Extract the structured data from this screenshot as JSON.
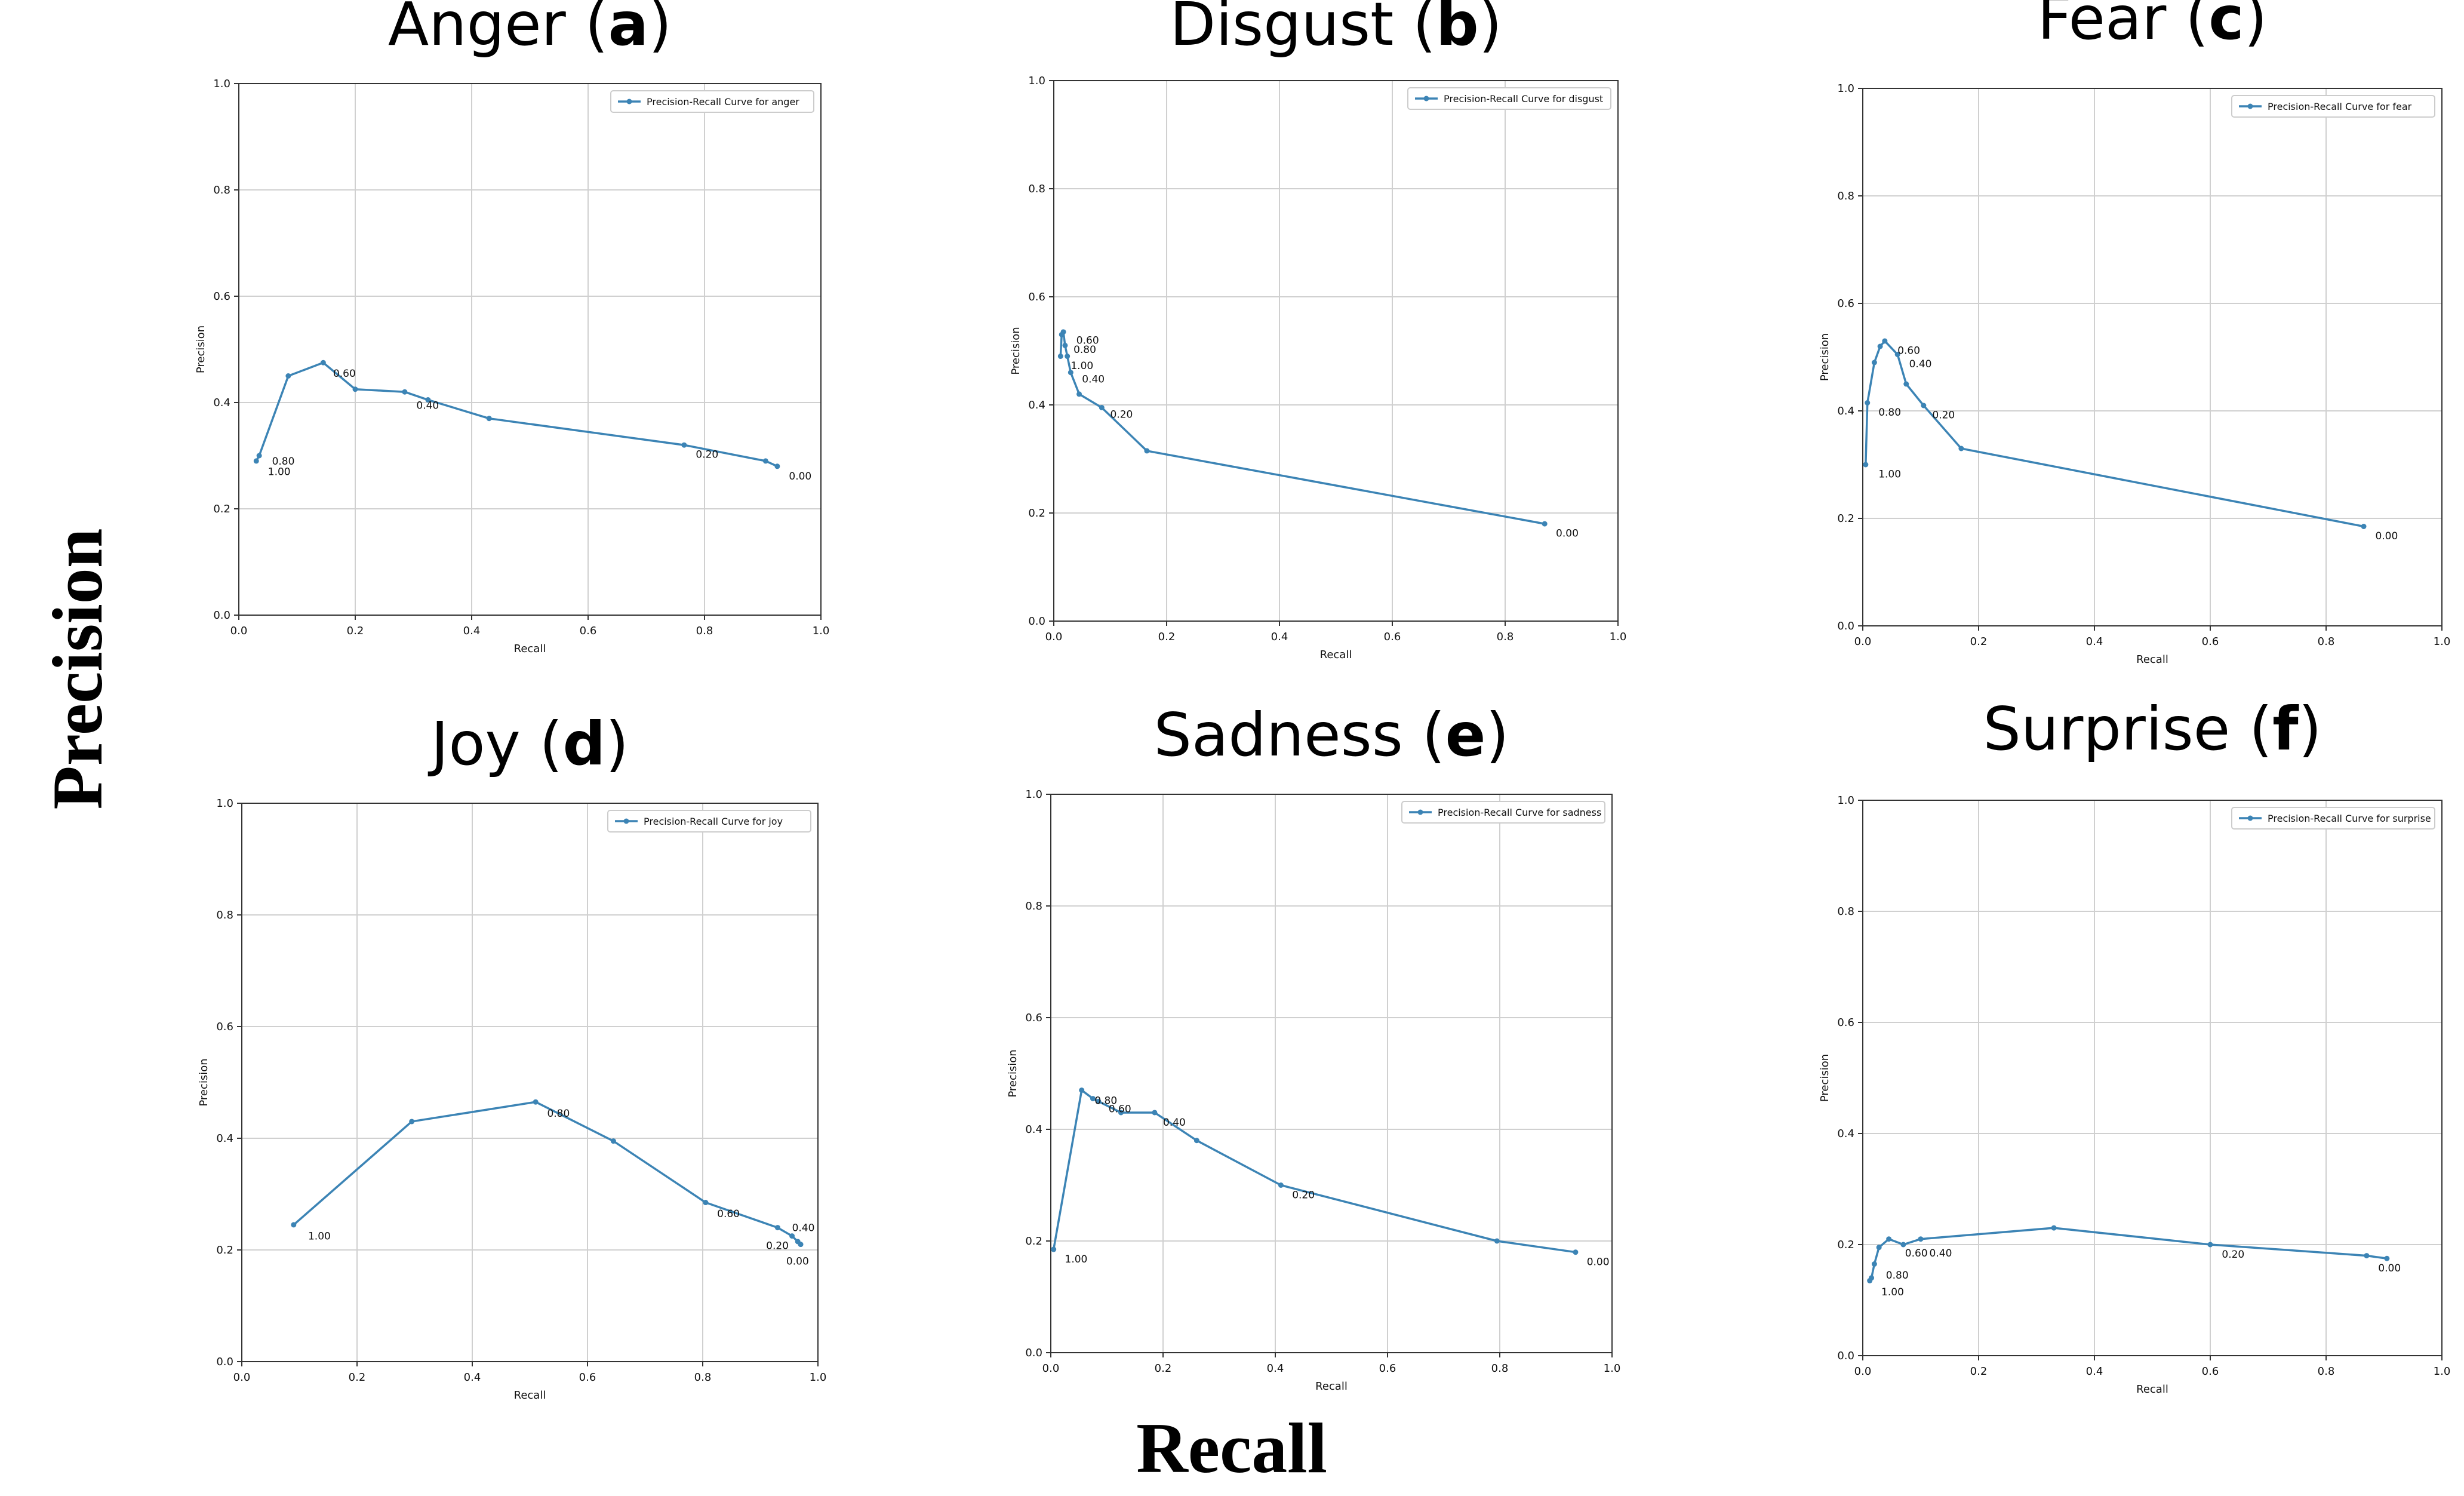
{
  "figure": {
    "ylabel": "Precision",
    "xlabel": "Recall"
  },
  "colors": {
    "series": "#3c84b5",
    "grid": "#d0d0d0",
    "axis": "#333333",
    "text": "#111111"
  },
  "chart_data": [
    {
      "type": "line",
      "title_name": "Anger",
      "title_letter": "a",
      "xlabel": "Recall",
      "ylabel": "Precision",
      "xlim": [
        0,
        1
      ],
      "ylim": [
        0,
        1
      ],
      "xticks": [
        "0.0",
        "0.2",
        "0.4",
        "0.6",
        "0.8",
        "1.0"
      ],
      "yticks": [
        "0.0",
        "0.2",
        "0.4",
        "0.6",
        "0.8",
        "1.0"
      ],
      "grid": true,
      "legend": "Precision-Recall Curve for anger",
      "legend_position": "top-right",
      "series": [
        {
          "name": "Precision-Recall Curve for anger",
          "x": [
            0.03,
            0.035,
            0.085,
            0.145,
            0.2,
            0.285,
            0.325,
            0.43,
            0.765,
            0.905,
            0.925
          ],
          "y": [
            0.29,
            0.3,
            0.45,
            0.475,
            0.425,
            0.42,
            0.405,
            0.37,
            0.32,
            0.29,
            0.28
          ]
        }
      ],
      "annotations": [
        {
          "text": "1.00",
          "x": 0.05,
          "y": 0.27
        },
        {
          "text": "0.80",
          "x": 0.057,
          "y": 0.29
        },
        {
          "text": "0.60",
          "x": 0.162,
          "y": 0.455
        },
        {
          "text": "0.40",
          "x": 0.305,
          "y": 0.395
        },
        {
          "text": "0.20",
          "x": 0.785,
          "y": 0.303
        },
        {
          "text": "0.00",
          "x": 0.945,
          "y": 0.262
        }
      ]
    },
    {
      "type": "line",
      "title_name": "Disgust",
      "title_letter": "b",
      "xlabel": "Recall",
      "ylabel": "Precision",
      "xlim": [
        0,
        1
      ],
      "ylim": [
        0,
        1
      ],
      "xticks": [
        "0.0",
        "0.2",
        "0.4",
        "0.6",
        "0.8",
        "1.0"
      ],
      "yticks": [
        "0.0",
        "0.2",
        "0.4",
        "0.6",
        "0.8",
        "1.0"
      ],
      "grid": true,
      "legend": "Precision-Recall Curve for disgust",
      "legend_position": "top-right",
      "series": [
        {
          "name": "Precision-Recall Curve for disgust",
          "x": [
            0.012,
            0.014,
            0.017,
            0.02,
            0.024,
            0.03,
            0.045,
            0.085,
            0.165,
            0.87
          ],
          "y": [
            0.49,
            0.53,
            0.535,
            0.51,
            0.49,
            0.46,
            0.42,
            0.395,
            0.315,
            0.18
          ]
        }
      ],
      "annotations": [
        {
          "text": "0.60",
          "x": 0.04,
          "y": 0.52
        },
        {
          "text": "0.80",
          "x": 0.035,
          "y": 0.503
        },
        {
          "text": "1.00",
          "x": 0.03,
          "y": 0.473
        },
        {
          "text": "0.40",
          "x": 0.05,
          "y": 0.448
        },
        {
          "text": "0.20",
          "x": 0.1,
          "y": 0.383
        },
        {
          "text": "0.00",
          "x": 0.89,
          "y": 0.163
        }
      ]
    },
    {
      "type": "line",
      "title_name": "Fear",
      "title_letter": "c",
      "xlabel": "Recall",
      "ylabel": "Precision",
      "xlim": [
        0,
        1
      ],
      "ylim": [
        0,
        1
      ],
      "xticks": [
        "0.0",
        "0.2",
        "0.4",
        "0.6",
        "0.8",
        "1.0"
      ],
      "yticks": [
        "0.0",
        "0.2",
        "0.4",
        "0.6",
        "0.8",
        "1.0"
      ],
      "grid": true,
      "legend": "Precision-Recall Curve for fear",
      "legend_position": "top-right",
      "series": [
        {
          "name": "Precision-Recall Curve for fear",
          "x": [
            0.005,
            0.008,
            0.02,
            0.03,
            0.038,
            0.06,
            0.075,
            0.105,
            0.17,
            0.865
          ],
          "y": [
            0.3,
            0.415,
            0.49,
            0.52,
            0.53,
            0.505,
            0.45,
            0.41,
            0.33,
            0.185
          ]
        }
      ],
      "annotations": [
        {
          "text": "1.00",
          "x": 0.027,
          "y": 0.283
        },
        {
          "text": "0.80",
          "x": 0.027,
          "y": 0.398
        },
        {
          "text": "0.60",
          "x": 0.06,
          "y": 0.513
        },
        {
          "text": "0.40",
          "x": 0.08,
          "y": 0.488
        },
        {
          "text": "0.20",
          "x": 0.12,
          "y": 0.393
        },
        {
          "text": "0.00",
          "x": 0.885,
          "y": 0.168
        }
      ]
    },
    {
      "type": "line",
      "title_name": "Joy",
      "title_letter": "d",
      "xlabel": "Recall",
      "ylabel": "Precision",
      "xlim": [
        0,
        1
      ],
      "ylim": [
        0,
        1
      ],
      "xticks": [
        "0.0",
        "0.2",
        "0.4",
        "0.6",
        "0.8",
        "1.0"
      ],
      "yticks": [
        "0.0",
        "0.2",
        "0.4",
        "0.6",
        "0.8",
        "1.0"
      ],
      "grid": true,
      "legend": "Precision-Recall Curve for joy",
      "legend_position": "top-right",
      "series": [
        {
          "name": "Precision-Recall Curve for joy",
          "x": [
            0.09,
            0.295,
            0.51,
            0.645,
            0.805,
            0.93,
            0.955,
            0.965,
            0.97
          ],
          "y": [
            0.245,
            0.43,
            0.465,
            0.395,
            0.285,
            0.24,
            0.225,
            0.215,
            0.21
          ]
        }
      ],
      "annotations": [
        {
          "text": "1.00",
          "x": 0.115,
          "y": 0.225
        },
        {
          "text": "0.80",
          "x": 0.53,
          "y": 0.445
        },
        {
          "text": "0.60",
          "x": 0.825,
          "y": 0.265
        },
        {
          "text": "0.40",
          "x": 0.955,
          "y": 0.24
        },
        {
          "text": "0.20",
          "x": 0.91,
          "y": 0.208
        },
        {
          "text": "0.00",
          "x": 0.945,
          "y": 0.18
        }
      ]
    },
    {
      "type": "line",
      "title_name": "Sadness",
      "title_letter": "e",
      "xlabel": "Recall",
      "ylabel": "Precision",
      "xlim": [
        0,
        1
      ],
      "ylim": [
        0,
        1
      ],
      "xticks": [
        "0.0",
        "0.2",
        "0.4",
        "0.6",
        "0.8",
        "1.0"
      ],
      "yticks": [
        "0.0",
        "0.2",
        "0.4",
        "0.6",
        "0.8",
        "1.0"
      ],
      "grid": true,
      "legend": "Precision-Recall Curve for sadness",
      "legend_position": "top-right",
      "series": [
        {
          "name": "Precision-Recall Curve for sadness",
          "x": [
            0.005,
            0.055,
            0.075,
            0.085,
            0.125,
            0.185,
            0.26,
            0.41,
            0.795,
            0.935
          ],
          "y": [
            0.185,
            0.47,
            0.455,
            0.45,
            0.43,
            0.43,
            0.38,
            0.3,
            0.2,
            0.18
          ]
        }
      ],
      "annotations": [
        {
          "text": "1.00",
          "x": 0.025,
          "y": 0.168
        },
        {
          "text": "0.80",
          "x": 0.078,
          "y": 0.452
        },
        {
          "text": "0.60",
          "x": 0.103,
          "y": 0.437
        },
        {
          "text": "0.40",
          "x": 0.2,
          "y": 0.413
        },
        {
          "text": "0.20",
          "x": 0.43,
          "y": 0.283
        },
        {
          "text": "0.00",
          "x": 0.955,
          "y": 0.163
        }
      ]
    },
    {
      "type": "line",
      "title_name": "Surprise",
      "title_letter": "f",
      "xlabel": "Recall",
      "ylabel": "Precision",
      "xlim": [
        0,
        1
      ],
      "ylim": [
        0,
        1
      ],
      "xticks": [
        "0.0",
        "0.2",
        "0.4",
        "0.6",
        "0.8",
        "1.0"
      ],
      "yticks": [
        "0.0",
        "0.2",
        "0.4",
        "0.6",
        "0.8",
        "1.0"
      ],
      "grid": true,
      "legend": "Precision-Recall Curve for surprise",
      "legend_position": "top-right",
      "series": [
        {
          "name": "Precision-Recall Curve for surprise",
          "x": [
            0.012,
            0.015,
            0.02,
            0.028,
            0.045,
            0.07,
            0.1,
            0.33,
            0.6,
            0.87,
            0.905
          ],
          "y": [
            0.135,
            0.14,
            0.165,
            0.195,
            0.21,
            0.2,
            0.21,
            0.23,
            0.2,
            0.18,
            0.175
          ]
        }
      ],
      "annotations": [
        {
          "text": "1.00",
          "x": 0.032,
          "y": 0.115
        },
        {
          "text": "0.80",
          "x": 0.04,
          "y": 0.145
        },
        {
          "text": "0.60",
          "x": 0.073,
          "y": 0.185
        },
        {
          "text": "0.40",
          "x": 0.115,
          "y": 0.185
        },
        {
          "text": "0.20",
          "x": 0.62,
          "y": 0.183
        },
        {
          "text": "0.00",
          "x": 0.89,
          "y": 0.158
        }
      ]
    }
  ]
}
